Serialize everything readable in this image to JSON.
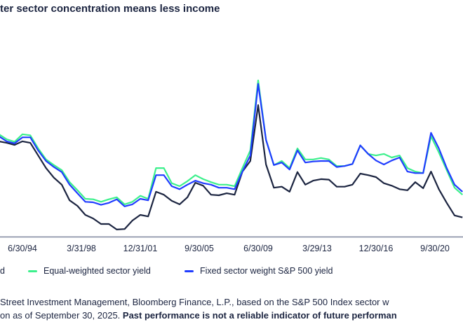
{
  "title": "ter sector concentration means less income",
  "legend": [
    {
      "label": "d",
      "color": "#1b2440"
    },
    {
      "label": "Equal-weighted sector yield",
      "color": "#3cf08c"
    },
    {
      "label": "Fixed sector weight S&P 500 yield",
      "color": "#1f3cff"
    }
  ],
  "footnote": {
    "line1": "Street Investment Management, Bloomberg Finance, L.P., based on the S&P 500 Index sector w",
    "line2_regular": "on as of September 30, 2025. ",
    "line2_bold": "Past performance is not a reliable indicator of future performan"
  },
  "chart_data": {
    "type": "line",
    "title": "ter sector concentration means less income",
    "xlabel": "",
    "ylabel": "",
    "grid": false,
    "legend_position": "bottom",
    "x_tick_labels": [
      "6/30/94",
      "3/31/98",
      "12/31/01",
      "9/30/05",
      "6/30/09",
      "3/29/13",
      "12/30/16",
      "9/30/20"
    ],
    "ylim": [
      1.0,
      5.4
    ],
    "x": [
      "1992-12",
      "1993-06",
      "1993-12",
      "1994-06",
      "1994-12",
      "1995-06",
      "1995-12",
      "1996-06",
      "1996-12",
      "1997-06",
      "1997-12",
      "1998-06",
      "1998-12",
      "1999-06",
      "1999-12",
      "2000-06",
      "2000-12",
      "2001-06",
      "2001-12",
      "2002-06",
      "2002-12",
      "2003-06",
      "2003-12",
      "2004-06",
      "2004-12",
      "2005-06",
      "2005-12",
      "2006-06",
      "2006-12",
      "2007-06",
      "2007-12",
      "2008-06",
      "2008-12",
      "2009-06",
      "2009-12",
      "2010-06",
      "2010-12",
      "2011-06",
      "2011-12",
      "2012-06",
      "2012-12",
      "2013-06",
      "2013-12",
      "2014-06",
      "2014-12",
      "2015-06",
      "2015-12",
      "2016-06",
      "2016-12",
      "2017-06",
      "2017-12",
      "2018-06",
      "2018-12",
      "2019-06",
      "2019-12",
      "2020-06",
      "2020-12",
      "2021-06",
      "2021-12",
      "2022-06"
    ],
    "series": [
      {
        "name": "d",
        "color": "#1b2440",
        "values": [
          2.89,
          2.86,
          2.82,
          2.89,
          2.86,
          2.61,
          2.36,
          2.17,
          2.03,
          1.72,
          1.61,
          1.43,
          1.36,
          1.25,
          1.25,
          1.14,
          1.15,
          1.32,
          1.43,
          1.4,
          1.89,
          1.83,
          1.71,
          1.64,
          1.78,
          2.07,
          2.01,
          1.83,
          1.82,
          1.86,
          1.83,
          2.29,
          2.5,
          3.61,
          2.43,
          1.97,
          1.99,
          1.89,
          2.28,
          2.03,
          2.11,
          2.14,
          2.13,
          1.99,
          1.99,
          2.03,
          2.25,
          2.22,
          2.18,
          2.06,
          2.01,
          1.94,
          1.92,
          2.08,
          1.96,
          2.29,
          1.94,
          1.67,
          1.42,
          1.38
        ]
      },
      {
        "name": "Equal-weighted sector yield",
        "color": "#3cf08c",
        "values": [
          3.03,
          2.93,
          2.88,
          3.03,
          3.01,
          2.75,
          2.53,
          2.42,
          2.32,
          2.08,
          1.92,
          1.75,
          1.74,
          1.69,
          1.74,
          1.78,
          1.64,
          1.69,
          1.81,
          1.75,
          2.36,
          2.36,
          2.06,
          2.0,
          2.1,
          2.22,
          2.14,
          2.08,
          2.03,
          2.03,
          2.0,
          2.36,
          2.71,
          4.1,
          2.92,
          2.42,
          2.5,
          2.36,
          2.75,
          2.53,
          2.53,
          2.56,
          2.53,
          2.4,
          2.4,
          2.44,
          2.81,
          2.64,
          2.61,
          2.64,
          2.57,
          2.61,
          2.36,
          2.29,
          2.26,
          2.99,
          2.67,
          2.32,
          1.97,
          1.83
        ]
      },
      {
        "name": "Fixed sector weight S&P 500 yield",
        "color": "#1f3cff",
        "values": [
          2.99,
          2.89,
          2.85,
          2.97,
          2.97,
          2.71,
          2.5,
          2.38,
          2.28,
          2.03,
          1.86,
          1.69,
          1.68,
          1.63,
          1.67,
          1.74,
          1.6,
          1.64,
          1.75,
          1.72,
          2.22,
          2.22,
          2.0,
          1.94,
          2.03,
          2.11,
          2.06,
          2.03,
          1.97,
          1.97,
          1.94,
          2.29,
          2.61,
          4.03,
          2.92,
          2.42,
          2.47,
          2.33,
          2.71,
          2.47,
          2.49,
          2.5,
          2.5,
          2.38,
          2.4,
          2.44,
          2.81,
          2.64,
          2.51,
          2.43,
          2.51,
          2.57,
          2.29,
          2.26,
          2.26,
          3.06,
          2.75,
          2.36,
          2.03,
          1.89
        ]
      }
    ]
  }
}
